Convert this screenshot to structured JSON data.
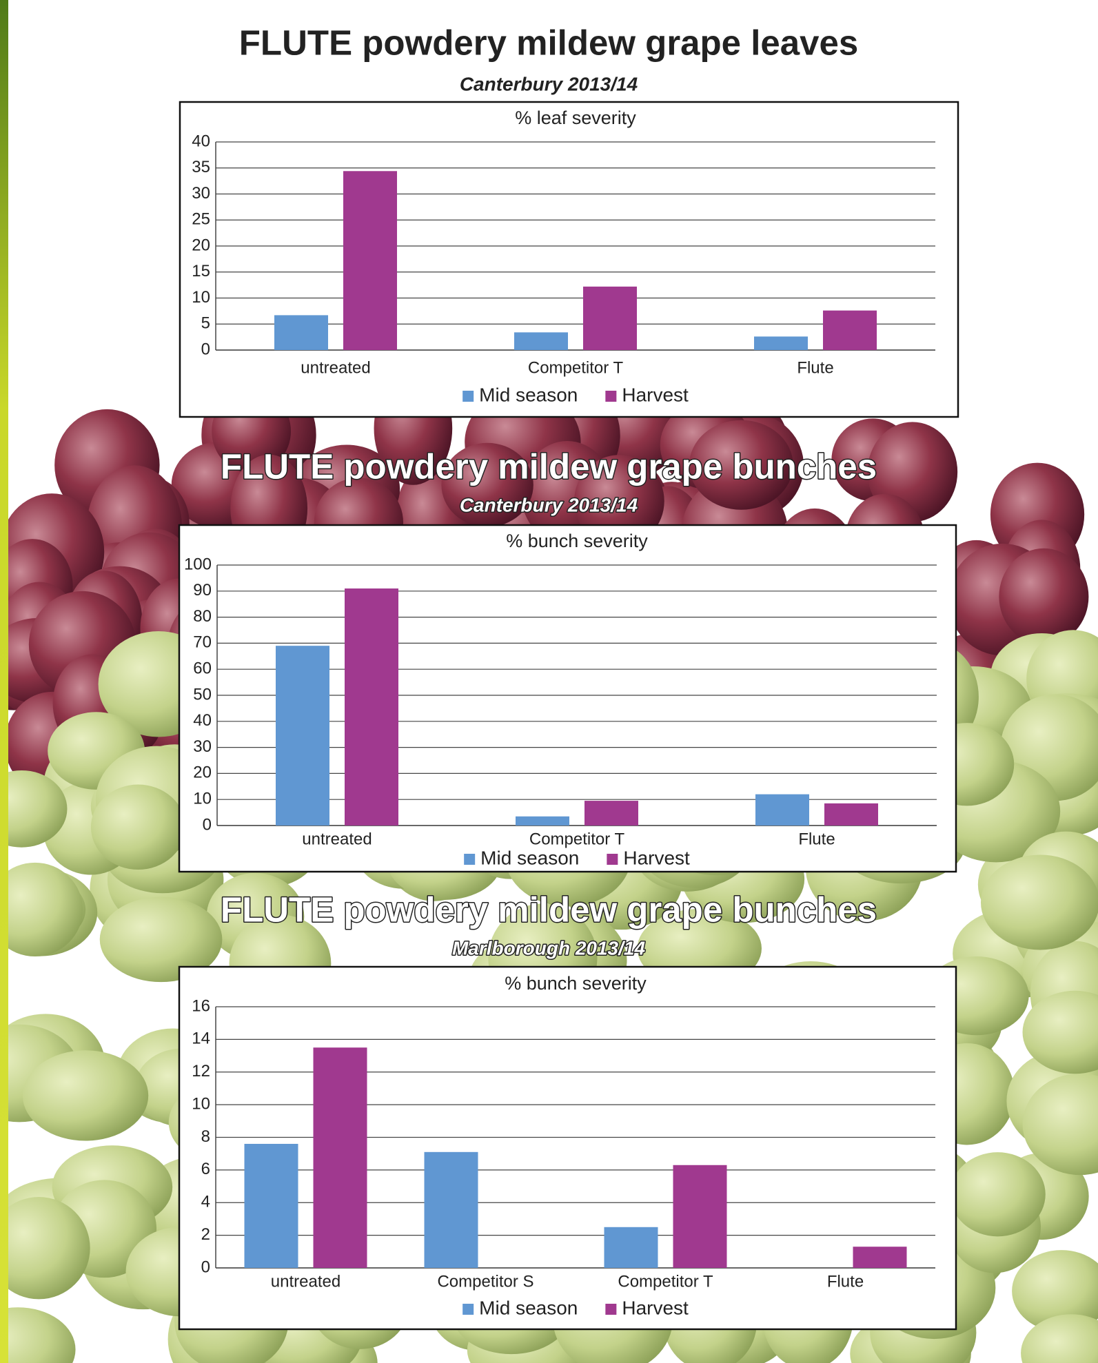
{
  "chart_data": [
    {
      "type": "bar",
      "title": "FLUTE powdery mildew grape leaves",
      "subtitle": "Canterbury 2013/14",
      "chart_title": "% leaf severity",
      "categories": [
        "untreated",
        "Competitor T",
        "Flute"
      ],
      "series": [
        {
          "name": "Mid season",
          "color": "#6097d2",
          "values": [
            6.7,
            3.4,
            2.6
          ]
        },
        {
          "name": "Harvest",
          "color": "#a0398f",
          "values": [
            34.4,
            12.2,
            7.6
          ]
        }
      ],
      "ylim": [
        0,
        40
      ],
      "yticks": [
        0,
        5,
        10,
        15,
        20,
        25,
        30,
        35,
        40
      ],
      "grid": true
    },
    {
      "type": "bar",
      "title": "FLUTE powdery mildew grape bunches",
      "subtitle": "Canterbury 2013/14",
      "chart_title": "% bunch severity",
      "categories": [
        "untreated",
        "Competitor T",
        "Flute"
      ],
      "series": [
        {
          "name": "Mid season",
          "color": "#6097d2",
          "values": [
            69,
            3.5,
            12
          ]
        },
        {
          "name": "Harvest",
          "color": "#a0398f",
          "values": [
            91,
            9.5,
            8.5
          ]
        }
      ],
      "ylim": [
        0,
        100
      ],
      "yticks": [
        0,
        10,
        20,
        30,
        40,
        50,
        60,
        70,
        80,
        90,
        100
      ],
      "grid": true
    },
    {
      "type": "bar",
      "title": "FLUTE powdery mildew grape bunches",
      "subtitle": "Marlborough 2013/14",
      "chart_title": "% bunch severity",
      "categories": [
        "untreated",
        "Competitor S",
        "Competitor T",
        "Flute"
      ],
      "series": [
        {
          "name": "Mid season",
          "color": "#6097d2",
          "values": [
            7.6,
            7.1,
            2.5,
            null
          ]
        },
        {
          "name": "Harvest",
          "color": "#a0398f",
          "values": [
            13.5,
            null,
            6.3,
            1.3
          ]
        }
      ],
      "ylim": [
        0,
        16
      ],
      "yticks": [
        0,
        2,
        4,
        6,
        8,
        10,
        12,
        14,
        16
      ],
      "grid": true
    }
  ]
}
